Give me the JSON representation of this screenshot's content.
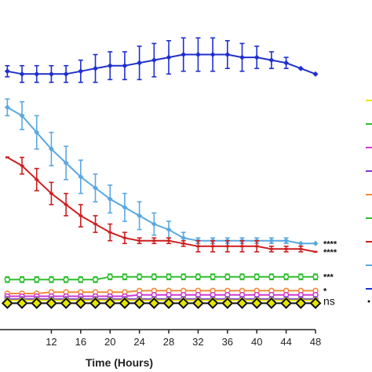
{
  "chart_data": {
    "type": "line",
    "xlabel": "Time (Hours)",
    "xlim": [
      5,
      48
    ],
    "ylim": [
      0,
      100
    ],
    "x_ticks": [
      12,
      16,
      20,
      24,
      28,
      32,
      36,
      40,
      44,
      48
    ],
    "grid": false,
    "series": [
      {
        "color": "#1f2fcf",
        "marker": "diamond",
        "x": [
          6,
          8,
          10,
          12,
          14,
          16,
          18,
          20,
          22,
          24,
          26,
          28,
          30,
          32,
          34,
          36,
          38,
          40,
          42,
          44,
          46,
          48
        ],
        "y": [
          93,
          92,
          92,
          92,
          92,
          93,
          94,
          95,
          95,
          96,
          97,
          98,
          99,
          99,
          99,
          99,
          98,
          98,
          97,
          96,
          94,
          92
        ],
        "err": [
          2,
          3,
          3,
          3,
          3,
          4,
          5,
          5,
          5,
          6,
          6,
          6,
          6,
          6,
          6,
          5,
          5,
          4,
          3,
          2,
          0,
          0
        ]
      },
      {
        "color": "#5aa8e0",
        "marker": "diamond",
        "x": [
          6,
          8,
          10,
          12,
          14,
          16,
          18,
          20,
          22,
          24,
          26,
          28,
          30,
          32,
          34,
          36,
          38,
          40,
          42,
          44,
          46,
          48
        ],
        "y": [
          80,
          77,
          71,
          65,
          60,
          55,
          51,
          47,
          44,
          41,
          38,
          36,
          33,
          32,
          32,
          32,
          32,
          32,
          32,
          32,
          31,
          31
        ],
        "err": [
          3,
          5,
          6,
          6,
          6,
          6,
          5,
          5,
          5,
          5,
          4,
          3,
          2,
          1,
          1,
          1,
          1,
          1,
          1,
          1,
          0,
          0
        ]
      },
      {
        "color": "#cc1f1f",
        "marker": "dash",
        "x": [
          6,
          8,
          10,
          12,
          14,
          16,
          18,
          20,
          22,
          24,
          26,
          28,
          30,
          32,
          34,
          36,
          38,
          40,
          42,
          44,
          46,
          48
        ],
        "y": [
          62,
          59,
          54,
          49,
          45,
          41,
          38,
          35,
          33,
          32,
          32,
          32,
          31,
          30,
          30,
          30,
          30,
          30,
          29,
          29,
          29,
          28
        ],
        "err": [
          0,
          3,
          4,
          4,
          4,
          4,
          3,
          3,
          2,
          1,
          1,
          1,
          1,
          2,
          2,
          2,
          2,
          2,
          1,
          1,
          1,
          0
        ]
      },
      {
        "color": "#2fbf2f",
        "marker": "circle",
        "x": [
          6,
          8,
          10,
          12,
          14,
          16,
          18,
          20,
          22,
          24,
          26,
          28,
          30,
          32,
          34,
          36,
          38,
          40,
          42,
          44,
          46,
          48
        ],
        "y": [
          18,
          18,
          18,
          18,
          18,
          18,
          18,
          19,
          19,
          19,
          19,
          19,
          19,
          19,
          19,
          19,
          19,
          19,
          19,
          19,
          19,
          19
        ],
        "err": [
          1,
          1,
          1,
          1,
          1,
          1,
          1,
          1,
          1,
          1,
          1,
          1,
          1,
          1,
          1,
          1,
          1,
          1,
          1,
          1,
          1,
          1
        ]
      },
      {
        "color": "#ee8a3a",
        "marker": "circle",
        "x": [
          6,
          8,
          10,
          12,
          14,
          16,
          18,
          20,
          22,
          24,
          26,
          28,
          30,
          32,
          34,
          36,
          38,
          40,
          42,
          44,
          46,
          48
        ],
        "y": [
          13,
          13,
          13,
          13.5,
          13.5,
          13.5,
          13.5,
          13.5,
          13.5,
          14,
          14,
          14,
          14,
          14,
          14,
          14,
          14,
          14,
          14,
          14,
          14,
          14
        ],
        "err": [
          0.5,
          0.5,
          0.5,
          0.5,
          0.5,
          0.5,
          0.5,
          0.5,
          0.5,
          0.5,
          0.5,
          0.5,
          0.5,
          0.5,
          0.5,
          0.5,
          0.5,
          0.5,
          0.5,
          0.5,
          0.5,
          0.5
        ]
      },
      {
        "color": "#d03ad0",
        "marker": "circle",
        "x": [
          6,
          8,
          10,
          12,
          14,
          16,
          18,
          20,
          22,
          24,
          26,
          28,
          30,
          32,
          34,
          36,
          38,
          40,
          42,
          44,
          46,
          48
        ],
        "y": [
          12,
          12,
          12,
          12,
          12,
          12,
          12,
          12,
          12,
          12.5,
          12.5,
          12.5,
          12.5,
          12.5,
          12.5,
          12.5,
          12.5,
          12.5,
          12.5,
          12.5,
          12.5,
          12.5
        ],
        "err": [
          0.4,
          0.4,
          0.4,
          0.4,
          0.4,
          0.4,
          0.4,
          0.4,
          0.4,
          0.4,
          0.4,
          0.4,
          0.4,
          0.4,
          0.4,
          0.4,
          0.4,
          0.4,
          0.4,
          0.4,
          0.4,
          0.4
        ]
      },
      {
        "color": "#7a3ad0",
        "marker": "circle",
        "x": [
          6,
          8,
          10,
          12,
          14,
          16,
          18,
          20,
          22,
          24,
          26,
          28,
          30,
          32,
          34,
          36,
          38,
          40,
          42,
          44,
          46,
          48
        ],
        "y": [
          11,
          11,
          11,
          11,
          11,
          11,
          11,
          11,
          11,
          11,
          11,
          11,
          11,
          11,
          11,
          11,
          11,
          11,
          11,
          11,
          11,
          11
        ],
        "err": [
          0.4,
          0.4,
          0.4,
          0.4,
          0.4,
          0.4,
          0.4,
          0.4,
          0.4,
          0.4,
          0.4,
          0.4,
          0.4,
          0.4,
          0.4,
          0.4,
          0.4,
          0.4,
          0.4,
          0.4,
          0.4,
          0.4
        ]
      },
      {
        "color": "#e6e600",
        "marker": "circle",
        "x": [
          6,
          8,
          10,
          12,
          14,
          16,
          18,
          20,
          22,
          24,
          26,
          28,
          30,
          32,
          34,
          36,
          38,
          40,
          42,
          44,
          46,
          48
        ],
        "y": [
          10.5,
          10.5,
          10.5,
          10.5,
          10.5,
          10.5,
          10.5,
          10.5,
          10.5,
          10.5,
          10.5,
          10.5,
          10.5,
          10.5,
          10.5,
          10.5,
          10.5,
          10.5,
          10.5,
          10.5,
          10.5,
          10.5
        ],
        "err": [
          0.3,
          0.3,
          0.3,
          0.3,
          0.3,
          0.3,
          0.3,
          0.3,
          0.3,
          0.3,
          0.3,
          0.3,
          0.3,
          0.3,
          0.3,
          0.3,
          0.3,
          0.3,
          0.3,
          0.3,
          0.3,
          0.3
        ]
      },
      {
        "color": "#111111",
        "marker": "open-diamond",
        "x": [
          6,
          8,
          10,
          12,
          14,
          16,
          18,
          20,
          22,
          24,
          26,
          28,
          30,
          32,
          34,
          36,
          38,
          40,
          42,
          44,
          46,
          48
        ],
        "y": [
          9.5,
          9.5,
          9.5,
          9.5,
          9.5,
          9.5,
          9.5,
          9.5,
          9.5,
          9.5,
          9.5,
          9.5,
          9.5,
          9.5,
          9.5,
          9.5,
          9.5,
          9.5,
          9.5,
          9.5,
          9.5,
          9.5
        ],
        "err": [
          0,
          0,
          0,
          0,
          0,
          0,
          0,
          0,
          0,
          0,
          0,
          0,
          0,
          0,
          0,
          0,
          0,
          0,
          0,
          0,
          0,
          0
        ]
      }
    ],
    "annotations": [
      {
        "text": "****",
        "x": 48,
        "y": 31
      },
      {
        "text": "****",
        "x": 48,
        "y": 28
      },
      {
        "text": "***",
        "x": 48,
        "y": 19
      },
      {
        "text": "*",
        "x": 48,
        "y": 14
      },
      {
        "text": "ns",
        "x": 48,
        "y": 10
      }
    ],
    "legend": {
      "position": "right",
      "colors": [
        "#e6e600",
        "#2fbf2f",
        "#d03ad0",
        "#7a3ad0",
        "#ee8a3a",
        "#2fbf2f",
        "#cc1f1f",
        "#5aa8e0",
        "#1f2fcf",
        "#111111"
      ]
    }
  }
}
